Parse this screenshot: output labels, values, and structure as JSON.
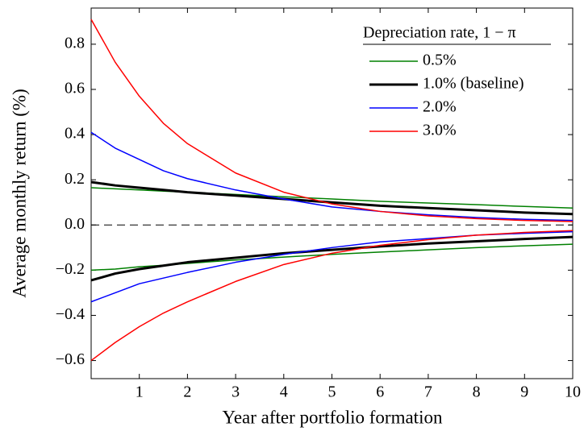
{
  "chart_data": {
    "type": "line",
    "xlabel": "Year after portfolio formation",
    "ylabel": "Average monthly return (%)",
    "x": [
      0,
      0.5,
      1,
      1.5,
      2,
      3,
      4,
      5,
      6,
      7,
      8,
      9,
      10
    ],
    "xlim": [
      0,
      10
    ],
    "xticks": [
      1,
      2,
      3,
      4,
      5,
      6,
      7,
      8,
      9,
      10
    ],
    "ylim": [
      -0.68,
      0.96
    ],
    "yticks": [
      {
        "value": -0.6,
        "label": "−0.6"
      },
      {
        "value": -0.4,
        "label": "−0.4"
      },
      {
        "value": -0.2,
        "label": "−0.2"
      },
      {
        "value": 0,
        "label": "0.0"
      },
      0.2,
      0.4,
      0.6,
      0.8
    ],
    "hline": 0,
    "legend_title": "Depreciation rate, 1 − π",
    "legend": "upper right",
    "series": [
      {
        "name": "0.5%",
        "color": "#008000",
        "linewidth": 1.5,
        "values": [
          0.165,
          0.16,
          0.155,
          0.15,
          0.145,
          0.135,
          0.125,
          0.115,
          0.105,
          0.097,
          0.09,
          0.082,
          0.075
        ],
        "lower": [
          -0.2,
          -0.195,
          -0.185,
          -0.178,
          -0.17,
          -0.155,
          -0.142,
          -0.13,
          -0.12,
          -0.11,
          -0.1,
          -0.092,
          -0.085
        ]
      },
      {
        "name": "1.0% (baseline)",
        "color": "#000000",
        "linewidth": 3,
        "values": [
          0.19,
          0.175,
          0.165,
          0.155,
          0.145,
          0.13,
          0.115,
          0.1,
          0.085,
          0.075,
          0.065,
          0.055,
          0.048
        ],
        "lower": [
          -0.245,
          -0.215,
          -0.195,
          -0.18,
          -0.165,
          -0.145,
          -0.125,
          -0.11,
          -0.095,
          -0.082,
          -0.072,
          -0.062,
          -0.053
        ]
      },
      {
        "name": "2.0%",
        "color": "#0000ff",
        "linewidth": 1.5,
        "values": [
          0.41,
          0.34,
          0.29,
          0.24,
          0.205,
          0.155,
          0.115,
          0.08,
          0.06,
          0.045,
          0.033,
          0.025,
          0.02
        ],
        "lower": [
          -0.34,
          -0.3,
          -0.26,
          -0.235,
          -0.21,
          -0.165,
          -0.13,
          -0.1,
          -0.075,
          -0.06,
          -0.045,
          -0.037,
          -0.03
        ]
      },
      {
        "name": "3.0%",
        "color": "#ff0000",
        "linewidth": 1.5,
        "values": [
          0.91,
          0.72,
          0.57,
          0.45,
          0.36,
          0.23,
          0.145,
          0.093,
          0.06,
          0.04,
          0.028,
          0.02,
          0.015
        ],
        "lower": [
          -0.6,
          -0.52,
          -0.45,
          -0.39,
          -0.34,
          -0.25,
          -0.175,
          -0.125,
          -0.09,
          -0.065,
          -0.045,
          -0.033,
          -0.025
        ]
      }
    ]
  }
}
